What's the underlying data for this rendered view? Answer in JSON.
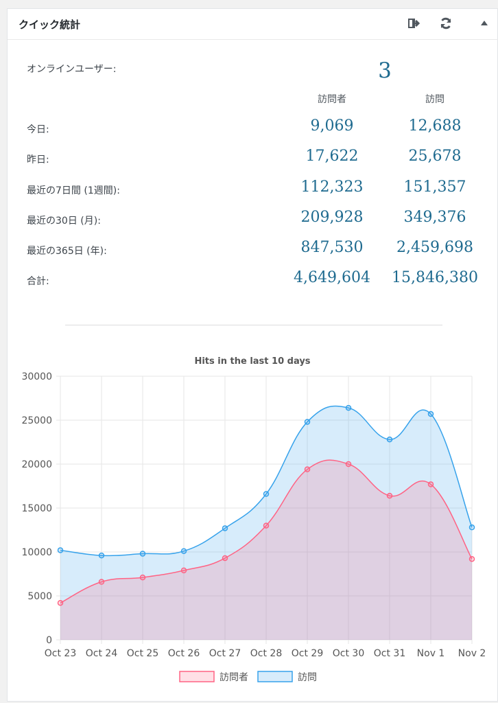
{
  "widget": {
    "title": "クイック統計",
    "online_label": "オンラインユーザー:",
    "online_value": "3",
    "col_visitors": "訪問者",
    "col_visits": "訪問"
  },
  "rows": [
    {
      "label": "今日:",
      "visitors": "9,069",
      "visits": "12,688"
    },
    {
      "label": "昨日:",
      "visitors": "17,622",
      "visits": "25,678"
    },
    {
      "label": "最近の7日間 (1週間):",
      "visitors": "112,323",
      "visits": "151,357"
    },
    {
      "label": "最近の30日 (月):",
      "visitors": "209,928",
      "visits": "349,376"
    },
    {
      "label": "最近の365日 (年):",
      "visitors": "847,530",
      "visits": "2,459,698"
    },
    {
      "label": "合計:",
      "visitors": "4,649,604",
      "visits": "15,846,380"
    }
  ],
  "icons": {
    "export": "export-icon",
    "refresh": "refresh-icon",
    "collapse": "collapse-arrow-icon"
  },
  "chart_data": {
    "type": "line",
    "title": "Hits in the last 10 days",
    "categories": [
      "Oct 23",
      "Oct 24",
      "Oct 25",
      "Oct 26",
      "Oct 27",
      "Oct 28",
      "Oct 29",
      "Oct 30",
      "Oct 31",
      "Nov 1",
      "Nov 2"
    ],
    "series": [
      {
        "name": "訪問者",
        "color": "#ff6384",
        "fill": "rgba(255,99,132,0.2)",
        "values": [
          4200,
          6600,
          7100,
          7900,
          9300,
          13000,
          19400,
          20000,
          16400,
          17700,
          9200
        ]
      },
      {
        "name": "訪問",
        "color": "#36a2eb",
        "fill": "rgba(54,162,235,0.2)",
        "values": [
          10200,
          9600,
          9800,
          10100,
          12700,
          16600,
          24800,
          26400,
          22800,
          25700,
          12800
        ]
      }
    ],
    "ylim": [
      0,
      30000
    ],
    "yticks": [
      0,
      5000,
      10000,
      15000,
      20000,
      25000,
      30000
    ],
    "grid": true,
    "legend_position": "bottom"
  }
}
